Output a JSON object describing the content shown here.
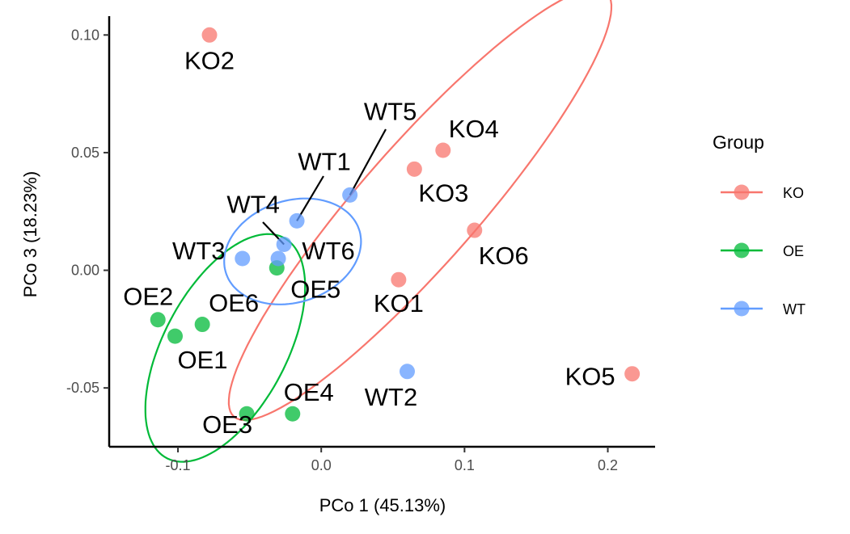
{
  "chart_data": {
    "type": "scatter",
    "xlabel": "PCo 1 (45.13%)",
    "ylabel": "PCo 3 (18.23%)",
    "xlim": [
      -0.148,
      0.233
    ],
    "ylim": [
      -0.075,
      0.108
    ],
    "x_ticks": [
      {
        "value": -0.1,
        "label": "-0.1"
      },
      {
        "value": 0.0,
        "label": "0.0"
      },
      {
        "value": 0.1,
        "label": "0.1"
      },
      {
        "value": 0.2,
        "label": "0.2"
      }
    ],
    "y_ticks": [
      {
        "value": -0.05,
        "label": "-0.05"
      },
      {
        "value": 0.0,
        "label": "0.00"
      },
      {
        "value": 0.05,
        "label": "0.05"
      },
      {
        "value": 0.1,
        "label": "0.10"
      }
    ],
    "grid": false,
    "legend": {
      "title": "Group",
      "position": "right"
    },
    "series": [
      {
        "name": "KO",
        "color": "#F8766D",
        "points": [
          {
            "label": "KO1",
            "x": 0.054,
            "y": -0.004
          },
          {
            "label": "KO2",
            "x": -0.078,
            "y": 0.1
          },
          {
            "label": "KO3",
            "x": 0.065,
            "y": 0.043
          },
          {
            "label": "KO4",
            "x": 0.085,
            "y": 0.051
          },
          {
            "label": "KO5",
            "x": 0.217,
            "y": -0.044
          },
          {
            "label": "KO6",
            "x": 0.107,
            "y": 0.017
          }
        ],
        "ellipse": {
          "cx": 0.069,
          "cy": 0.028,
          "rx": 0.159,
          "ry": 0.031,
          "angle_deg": 33.6
        }
      },
      {
        "name": "OE",
        "color": "#00BA38",
        "points": [
          {
            "label": "OE1",
            "x": -0.102,
            "y": -0.028
          },
          {
            "label": "OE2",
            "x": -0.114,
            "y": -0.021
          },
          {
            "label": "OE3",
            "x": -0.052,
            "y": -0.061
          },
          {
            "label": "OE4",
            "x": -0.02,
            "y": -0.061
          },
          {
            "label": "OE5",
            "x": -0.031,
            "y": 0.001
          },
          {
            "label": "OE6",
            "x": -0.083,
            "y": -0.023
          }
        ],
        "ellipse": {
          "cx": -0.067,
          "cy": -0.033,
          "rx": 0.065,
          "ry": 0.035,
          "angle_deg": 37.6
        }
      },
      {
        "name": "WT",
        "color": "#619CFF",
        "points": [
          {
            "label": "WT1",
            "x": -0.017,
            "y": 0.021
          },
          {
            "label": "WT2",
            "x": 0.06,
            "y": -0.043
          },
          {
            "label": "WT3",
            "x": -0.055,
            "y": 0.005
          },
          {
            "label": "WT4",
            "x": -0.026,
            "y": 0.011
          },
          {
            "label": "WT5",
            "x": 0.02,
            "y": 0.032
          },
          {
            "label": "WT6",
            "x": -0.03,
            "y": 0.005
          }
        ],
        "ellipse": {
          "cx": -0.02,
          "cy": 0.008,
          "rx": 0.048,
          "ry": 0.022,
          "angle_deg": 6.4
        }
      }
    ]
  }
}
